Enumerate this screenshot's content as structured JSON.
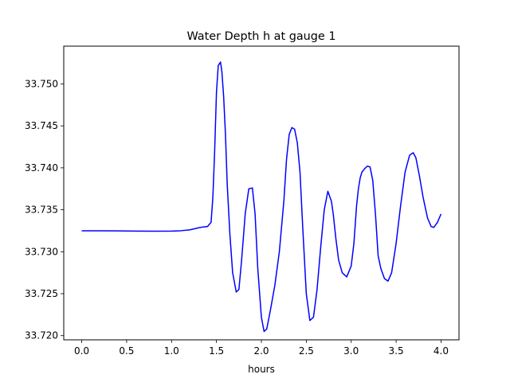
{
  "chart_data": {
    "type": "line",
    "title": "Water Depth h at gauge 1",
    "xlabel": "hours",
    "ylabel": "",
    "xlim": [
      -0.2,
      4.2
    ],
    "ylim": [
      33.7195,
      33.7545
    ],
    "xticks": [
      0.0,
      0.5,
      1.0,
      1.5,
      2.0,
      2.5,
      3.0,
      3.5,
      4.0
    ],
    "xtick_labels": [
      "0.0",
      "0.5",
      "1.0",
      "1.5",
      "2.0",
      "2.5",
      "3.0",
      "3.5",
      "4.0"
    ],
    "yticks": [
      33.72,
      33.725,
      33.73,
      33.735,
      33.74,
      33.745,
      33.75
    ],
    "ytick_labels": [
      "33.720",
      "33.725",
      "33.730",
      "33.735",
      "33.740",
      "33.745",
      "33.750"
    ],
    "grid": false,
    "series": [
      {
        "color": "#0000ff",
        "x": [
          0.0,
          0.2,
          0.4,
          0.6,
          0.8,
          1.0,
          1.1,
          1.2,
          1.25,
          1.3,
          1.35,
          1.4,
          1.44,
          1.46,
          1.48,
          1.5,
          1.52,
          1.545,
          1.56,
          1.58,
          1.6,
          1.62,
          1.65,
          1.68,
          1.72,
          1.75,
          1.78,
          1.82,
          1.86,
          1.9,
          1.93,
          1.96,
          2.0,
          2.03,
          2.06,
          2.1,
          2.15,
          2.2,
          2.25,
          2.28,
          2.31,
          2.34,
          2.37,
          2.4,
          2.43,
          2.46,
          2.5,
          2.54,
          2.58,
          2.62,
          2.66,
          2.7,
          2.74,
          2.78,
          2.8,
          2.83,
          2.86,
          2.9,
          2.95,
          3.0,
          3.03,
          3.06,
          3.08,
          3.1,
          3.12,
          3.15,
          3.18,
          3.21,
          3.24,
          3.27,
          3.3,
          3.33,
          3.37,
          3.41,
          3.45,
          3.5,
          3.55,
          3.6,
          3.65,
          3.69,
          3.72,
          3.76,
          3.8,
          3.85,
          3.89,
          3.92,
          3.96,
          4.0
        ],
        "y": [
          33.7325,
          33.7325,
          33.73248,
          33.73246,
          33.73245,
          33.73246,
          33.7325,
          33.7326,
          33.73272,
          33.73285,
          33.73295,
          33.733,
          33.7335,
          33.7365,
          33.742,
          33.749,
          33.7522,
          33.7526,
          33.7515,
          33.7485,
          33.744,
          33.738,
          33.732,
          33.7275,
          33.7252,
          33.7255,
          33.729,
          33.7345,
          33.7375,
          33.7376,
          33.7345,
          33.728,
          33.7222,
          33.7205,
          33.7208,
          33.723,
          33.726,
          33.73,
          33.736,
          33.741,
          33.744,
          33.7448,
          33.7446,
          33.743,
          33.7395,
          33.733,
          33.725,
          33.7218,
          33.7222,
          33.7255,
          33.7305,
          33.735,
          33.7372,
          33.736,
          33.7345,
          33.7315,
          33.729,
          33.7275,
          33.727,
          33.7283,
          33.731,
          33.7355,
          33.7375,
          33.7388,
          33.7395,
          33.7399,
          33.7402,
          33.7401,
          33.7385,
          33.7345,
          33.7295,
          33.728,
          33.7268,
          33.7265,
          33.7275,
          33.731,
          33.7355,
          33.7395,
          33.7415,
          33.7418,
          33.7412,
          33.739,
          33.7365,
          33.734,
          33.733,
          33.7329,
          33.7335,
          33.7345
        ]
      }
    ]
  }
}
